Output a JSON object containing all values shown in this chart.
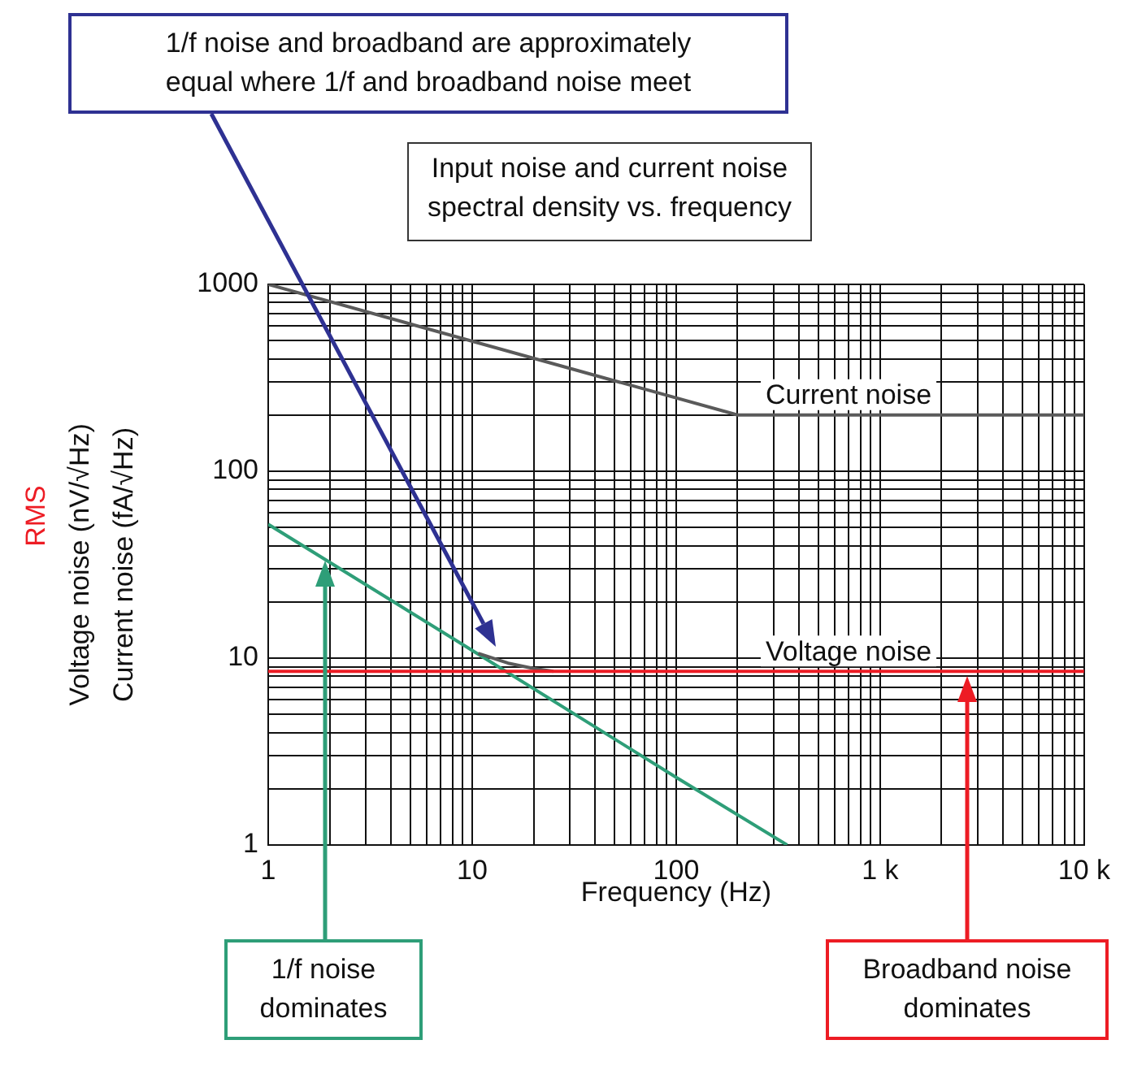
{
  "chart_data": {
    "type": "line",
    "title": "Input noise and current noise\nspectral density vs. frequency",
    "xlabel": "Frequency (Hz)",
    "ylabel": "RMS\nVoltage noise (nV/√Hz)\nCurrent noise (fA/√Hz)",
    "log": "xy",
    "grid": true,
    "legend": false,
    "marker": "none",
    "line_style": "solid",
    "xlim": [
      1,
      10000
    ],
    "ylim": [
      1,
      1000
    ],
    "xticks": [
      1,
      {
        "value": 2,
        "label": null
      },
      {
        "value": 3,
        "label": null
      },
      {
        "value": 4,
        "label": null
      },
      {
        "value": 5,
        "label": null
      },
      {
        "value": 6,
        "label": null
      },
      {
        "value": 7,
        "label": null
      },
      {
        "value": 8,
        "label": null
      },
      {
        "value": 9,
        "label": null
      },
      10,
      {
        "value": 20,
        "label": null
      },
      {
        "value": 30,
        "label": null
      },
      {
        "value": 40,
        "label": null
      },
      {
        "value": 50,
        "label": null
      },
      {
        "value": 60,
        "label": null
      },
      {
        "value": 70,
        "label": null
      },
      {
        "value": 80,
        "label": null
      },
      {
        "value": 90,
        "label": null
      },
      100,
      {
        "value": 200,
        "label": null
      },
      {
        "value": 300,
        "label": null
      },
      {
        "value": 400,
        "label": null
      },
      {
        "value": 500,
        "label": null
      },
      {
        "value": 600,
        "label": null
      },
      {
        "value": 700,
        "label": null
      },
      {
        "value": 800,
        "label": null
      },
      {
        "value": 900,
        "label": null
      },
      {
        "value": 1000,
        "label": "1 k"
      },
      {
        "value": 2000,
        "label": null
      },
      {
        "value": 3000,
        "label": null
      },
      {
        "value": 4000,
        "label": null
      },
      {
        "value": 5000,
        "label": null
      },
      {
        "value": 6000,
        "label": null
      },
      {
        "value": 7000,
        "label": null
      },
      {
        "value": 8000,
        "label": null
      },
      {
        "value": 9000,
        "label": null
      },
      {
        "value": 10000,
        "label": "10 k"
      }
    ],
    "yticks": [
      1,
      {
        "value": 2,
        "label": null
      },
      {
        "value": 3,
        "label": null
      },
      {
        "value": 4,
        "label": null
      },
      {
        "value": 5,
        "label": null
      },
      {
        "value": 6,
        "label": null
      },
      {
        "value": 7,
        "label": null
      },
      {
        "value": 8,
        "label": null
      },
      {
        "value": 9,
        "label": null
      },
      10,
      {
        "value": 20,
        "label": null
      },
      {
        "value": 30,
        "label": null
      },
      {
        "value": 40,
        "label": null
      },
      {
        "value": 50,
        "label": null
      },
      {
        "value": 60,
        "label": null
      },
      {
        "value": 70,
        "label": null
      },
      {
        "value": 80,
        "label": null
      },
      {
        "value": 90,
        "label": null
      },
      100,
      {
        "value": 200,
        "label": null
      },
      {
        "value": 300,
        "label": null
      },
      {
        "value": 400,
        "label": null
      },
      {
        "value": 500,
        "label": null
      },
      {
        "value": 600,
        "label": null
      },
      {
        "value": 700,
        "label": null
      },
      {
        "value": 800,
        "label": null
      },
      {
        "value": 900,
        "label": null
      },
      1000
    ],
    "series": [
      {
        "name": "Current noise",
        "color": "#5a5a5a",
        "x": [
          1,
          200,
          10000
        ],
        "values": [
          1000,
          200,
          200
        ]
      },
      {
        "name": "Voltage noise",
        "color": "#ed1c24",
        "x": [
          1,
          10000
        ],
        "values": [
          8.5,
          8.5
        ]
      },
      {
        "color": "#5a5a5a",
        "x": [
          10.7,
          15,
          20,
          25
        ],
        "values": [
          10.6,
          9.4,
          8.8,
          8.5
        ]
      },
      {
        "color": "#2e9e78",
        "x": [
          1,
          10,
          100,
          350
        ],
        "values": [
          52,
          11,
          2.3,
          1
        ]
      }
    ],
    "annotations": [
      "1/f noise and broadband are approximately\nequal where 1/f and broadband noise meet",
      "1/f noise\ndominates",
      "Broadband noise\ndominates"
    ]
  }
}
